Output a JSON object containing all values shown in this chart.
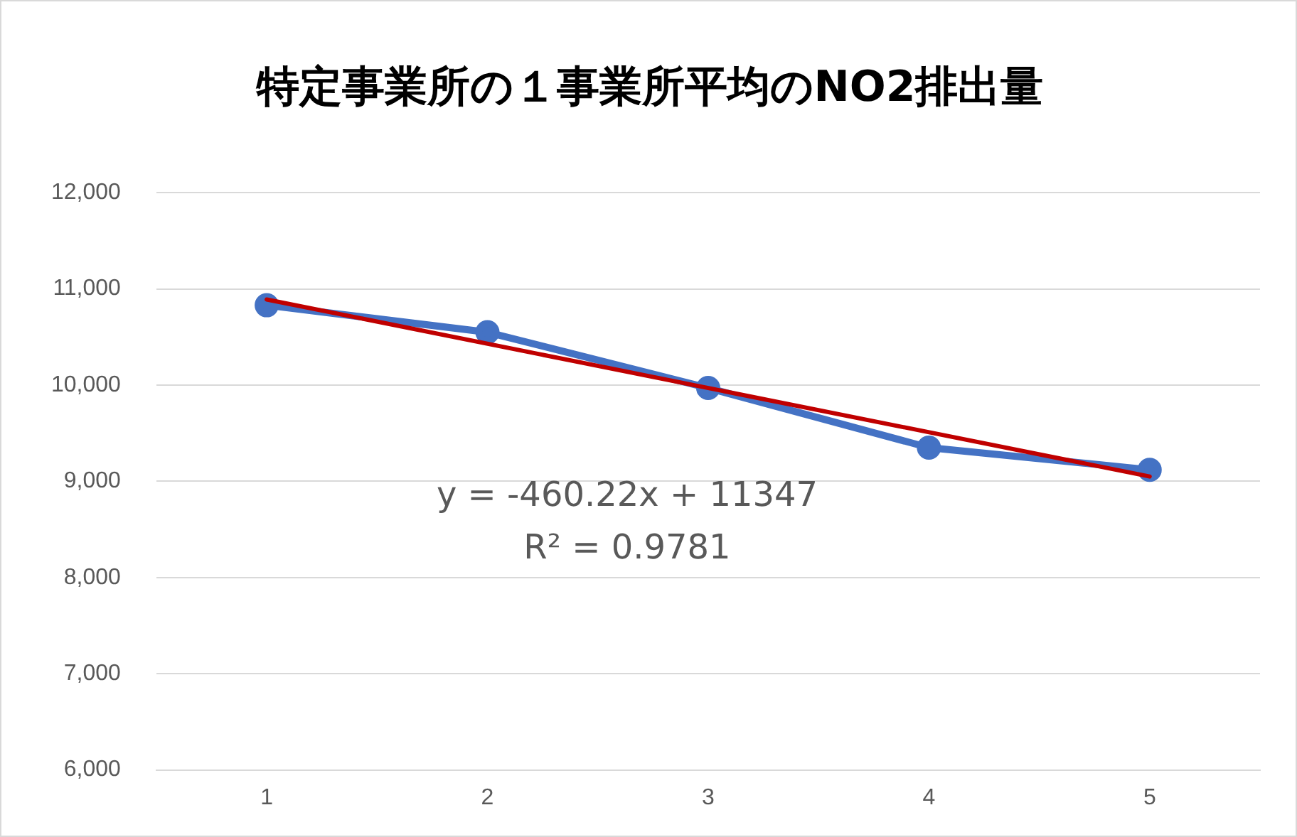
{
  "chart_data": {
    "type": "line",
    "title": "特定事業所の１事業所平均のNO2排出量",
    "categories": [
      "1",
      "2",
      "3",
      "4",
      "5"
    ],
    "series": [
      {
        "color": "#4472c4",
        "values": [
          10830,
          10550,
          9970,
          9350,
          9120
        ],
        "marker": "circle"
      },
      {
        "color": "#c00000",
        "x": [
          "1",
          "5"
        ],
        "values": [
          10890,
          9050
        ],
        "marker": "none"
      }
    ],
    "ylim": [
      6000,
      12000
    ],
    "yticks": [
      {
        "value": 6000,
        "label": "6,000"
      },
      {
        "value": 7000,
        "label": "7,000"
      },
      {
        "value": 8000,
        "label": "8,000"
      },
      {
        "value": 9000,
        "label": "9,000"
      },
      {
        "value": 10000,
        "label": "10,000"
      },
      {
        "value": 11000,
        "label": "11,000"
      },
      {
        "value": 12000,
        "label": "12,000"
      }
    ],
    "grid": "y",
    "legend": false,
    "annotations": [
      "y = -460.22x + 11347",
      "R² = 0.9781"
    ]
  }
}
